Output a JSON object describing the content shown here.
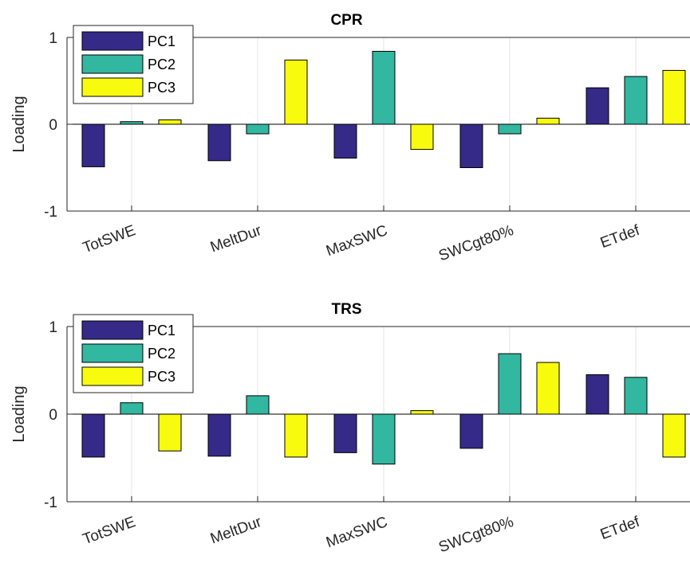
{
  "chart_data": [
    {
      "type": "bar",
      "title": "CPR",
      "ylabel": "Loading",
      "xlabel": "",
      "ylim": [
        -1,
        1
      ],
      "yticks": [
        "-1",
        "0",
        "1"
      ],
      "categories": [
        "TotSWE",
        "MeltDur",
        "MaxSWC",
        "SWCgt80%",
        "ETdef"
      ],
      "grid": true,
      "legend_position": "top-left",
      "series": [
        {
          "name": "PC1",
          "color": "#352a87",
          "values": [
            -0.49,
            -0.42,
            -0.39,
            -0.5,
            0.42
          ]
        },
        {
          "name": "PC2",
          "color": "#32b7a0",
          "values": [
            0.03,
            -0.11,
            0.84,
            -0.11,
            0.55
          ]
        },
        {
          "name": "PC3",
          "color": "#f9fb0e",
          "values": [
            0.05,
            0.74,
            -0.29,
            0.07,
            0.62
          ]
        }
      ]
    },
    {
      "type": "bar",
      "title": "TRS",
      "ylabel": "Loading",
      "xlabel": "",
      "ylim": [
        -1,
        1
      ],
      "yticks": [
        "-1",
        "0",
        "1"
      ],
      "categories": [
        "TotSWE",
        "MeltDur",
        "MaxSWC",
        "SWCgt80%",
        "ETdef"
      ],
      "grid": true,
      "legend_position": "top-left",
      "series": [
        {
          "name": "PC1",
          "color": "#352a87",
          "values": [
            -0.49,
            -0.48,
            -0.44,
            -0.39,
            0.45
          ]
        },
        {
          "name": "PC2",
          "color": "#32b7a0",
          "values": [
            0.13,
            0.21,
            -0.57,
            0.69,
            0.42
          ]
        },
        {
          "name": "PC3",
          "color": "#f9fb0e",
          "values": [
            -0.42,
            -0.49,
            0.04,
            0.59,
            -0.49
          ]
        }
      ]
    }
  ]
}
